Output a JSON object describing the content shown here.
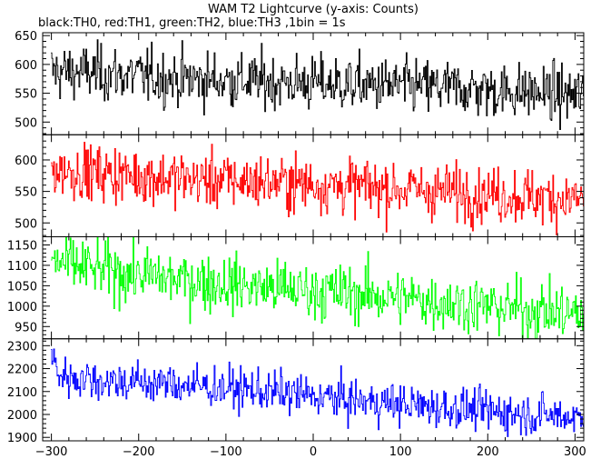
{
  "chart_data": {
    "type": "line",
    "title": "WAM T2 Lightcurve (y-axis: Counts)",
    "subtitle": "black:TH0, red:TH1, green:TH2, blue:TH3 ,1bin = 1s",
    "xlim": [
      -310,
      310
    ],
    "x_ticks": [
      -300,
      -200,
      -100,
      0,
      100,
      200,
      300
    ],
    "x_tick_labels": [
      "−300",
      "−200",
      "−100",
      "0",
      "100",
      "200",
      "300"
    ],
    "x_range": [
      -300,
      310
    ],
    "bin_seconds": 1,
    "grid": false,
    "series": [
      {
        "name": "TH0",
        "color": "#000000",
        "ylim": [
          478,
          655
        ],
        "y_ticks": [
          500,
          550,
          600,
          650
        ],
        "trend": {
          "x": [
            -300,
            -250,
            -150,
            -50,
            50,
            150,
            250,
            310
          ],
          "y": [
            588,
            585,
            575,
            570,
            565,
            560,
            552,
            545
          ]
        },
        "noise_sd": 24
      },
      {
        "name": "TH1",
        "color": "#ff0000",
        "ylim": [
          478,
          640
        ],
        "y_ticks": [
          500,
          550,
          600
        ],
        "trend": {
          "x": [
            -300,
            -250,
            -150,
            -50,
            50,
            150,
            250,
            310
          ],
          "y": [
            585,
            580,
            570,
            565,
            558,
            550,
            542,
            538
          ]
        },
        "noise_sd": 22
      },
      {
        "name": "TH2",
        "color": "#00ff00",
        "ylim": [
          920,
          1170
        ],
        "y_ticks": [
          950,
          1000,
          1050,
          1100,
          1150
        ],
        "trend": {
          "x": [
            -300,
            -250,
            -150,
            -50,
            50,
            150,
            250,
            310
          ],
          "y": [
            1110,
            1090,
            1065,
            1045,
            1030,
            1010,
            990,
            980
          ]
        },
        "noise_sd": 35
      },
      {
        "name": "TH3",
        "color": "#0000ff",
        "ylim": [
          1885,
          2330
        ],
        "y_ticks": [
          1900,
          2000,
          2100,
          2200,
          2300
        ],
        "trend": {
          "x": [
            -300,
            -290,
            -250,
            -150,
            -50,
            50,
            150,
            250,
            310
          ],
          "y": [
            2250,
            2170,
            2150,
            2130,
            2100,
            2060,
            2030,
            2000,
            1990
          ]
        },
        "noise_sd": 45
      }
    ]
  }
}
